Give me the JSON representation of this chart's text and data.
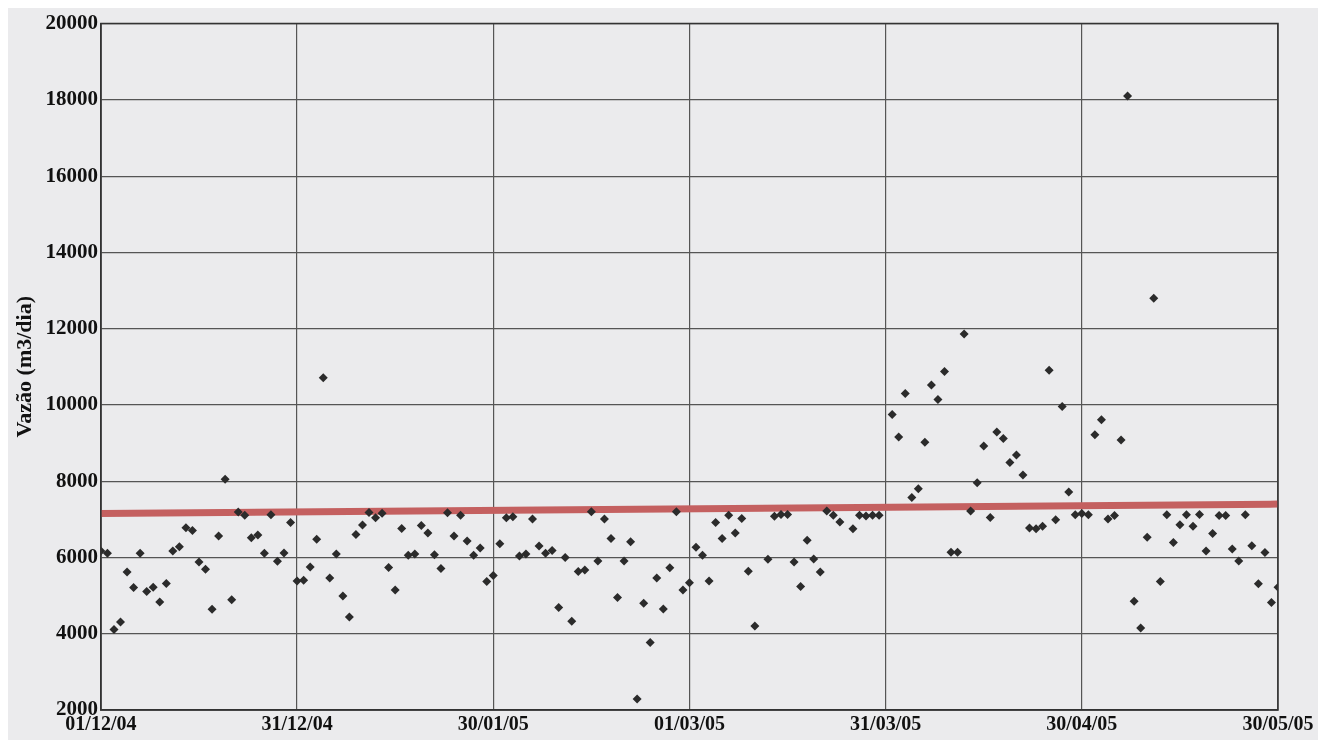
{
  "chart_data": {
    "type": "scatter",
    "ylabel": "Vazão (m3/dia)",
    "xlim": [
      "2004-12-01",
      "2005-05-30"
    ],
    "xticks": [
      {
        "value": "2004-12-01",
        "label": "01/12/04"
      },
      {
        "value": "2004-12-31",
        "label": "31/12/04"
      },
      {
        "value": "2005-01-30",
        "label": "30/01/05"
      },
      {
        "value": "2005-03-01",
        "label": "01/03/05"
      },
      {
        "value": "2005-03-31",
        "label": "31/03/05"
      },
      {
        "value": "2005-04-30",
        "label": "30/04/05"
      },
      {
        "value": "2005-05-30",
        "label": "30/05/05"
      }
    ],
    "ylim": [
      2000,
      20000
    ],
    "yticks": [
      2000,
      4000,
      6000,
      8000,
      10000,
      12000,
      14000,
      16000,
      18000,
      20000
    ],
    "grid": true,
    "legend": false,
    "series": [
      {
        "color": "#2b2b2b",
        "marker": "diamond",
        "x": [
          "2004-12-01",
          "2004-12-02",
          "2004-12-03",
          "2004-12-04",
          "2004-12-05",
          "2004-12-06",
          "2004-12-07",
          "2004-12-08",
          "2004-12-09",
          "2004-12-10",
          "2004-12-11",
          "2004-12-12",
          "2004-12-13",
          "2004-12-14",
          "2004-12-15",
          "2004-12-16",
          "2004-12-17",
          "2004-12-18",
          "2004-12-19",
          "2004-12-20",
          "2004-12-21",
          "2004-12-22",
          "2004-12-23",
          "2004-12-24",
          "2004-12-25",
          "2004-12-26",
          "2004-12-27",
          "2004-12-28",
          "2004-12-29",
          "2004-12-30",
          "2004-12-31",
          "2005-01-01",
          "2005-01-02",
          "2005-01-03",
          "2005-01-04",
          "2005-01-05",
          "2005-01-06",
          "2005-01-07",
          "2005-01-08",
          "2005-01-09",
          "2005-01-10",
          "2005-01-11",
          "2005-01-12",
          "2005-01-13",
          "2005-01-14",
          "2005-01-15",
          "2005-01-16",
          "2005-01-17",
          "2005-01-18",
          "2005-01-19",
          "2005-01-20",
          "2005-01-21",
          "2005-01-22",
          "2005-01-23",
          "2005-01-24",
          "2005-01-25",
          "2005-01-26",
          "2005-01-27",
          "2005-01-28",
          "2005-01-29",
          "2005-01-30",
          "2005-01-31",
          "2005-02-01",
          "2005-02-02",
          "2005-02-03",
          "2005-02-04",
          "2005-02-05",
          "2005-02-06",
          "2005-02-07",
          "2005-02-08",
          "2005-02-09",
          "2005-02-10",
          "2005-02-11",
          "2005-02-12",
          "2005-02-13",
          "2005-02-14",
          "2005-02-15",
          "2005-02-16",
          "2005-02-17",
          "2005-02-18",
          "2005-02-19",
          "2005-02-20",
          "2005-02-21",
          "2005-02-22",
          "2005-02-23",
          "2005-02-24",
          "2005-02-25",
          "2005-02-26",
          "2005-02-27",
          "2005-02-28",
          "2005-03-01",
          "2005-03-02",
          "2005-03-03",
          "2005-03-04",
          "2005-03-05",
          "2005-03-06",
          "2005-03-07",
          "2005-03-08",
          "2005-03-09",
          "2005-03-10",
          "2005-03-11",
          "2005-03-13",
          "2005-03-14",
          "2005-03-15",
          "2005-03-16",
          "2005-03-17",
          "2005-03-18",
          "2005-03-19",
          "2005-03-20",
          "2005-03-21",
          "2005-03-22",
          "2005-03-23",
          "2005-03-24",
          "2005-03-26",
          "2005-03-27",
          "2005-03-28",
          "2005-03-29",
          "2005-03-30",
          "2005-04-01",
          "2005-04-02",
          "2005-04-03",
          "2005-04-04",
          "2005-04-05",
          "2005-04-06",
          "2005-04-07",
          "2005-04-08",
          "2005-04-09",
          "2005-04-10",
          "2005-04-11",
          "2005-04-12",
          "2005-04-13",
          "2005-04-14",
          "2005-04-15",
          "2005-04-16",
          "2005-04-17",
          "2005-04-18",
          "2005-04-19",
          "2005-04-20",
          "2005-04-21",
          "2005-04-22",
          "2005-04-23",
          "2005-04-24",
          "2005-04-25",
          "2005-04-26",
          "2005-04-27",
          "2005-04-28",
          "2005-04-29",
          "2005-04-30",
          "2005-05-01",
          "2005-05-02",
          "2005-05-03",
          "2005-05-04",
          "2005-05-05",
          "2005-05-06",
          "2005-05-07",
          "2005-05-08",
          "2005-05-09",
          "2005-05-10",
          "2005-05-11",
          "2005-05-12",
          "2005-05-13",
          "2005-05-14",
          "2005-05-15",
          "2005-05-16",
          "2005-05-17",
          "2005-05-18",
          "2005-05-19",
          "2005-05-20",
          "2005-05-21",
          "2005-05-22",
          "2005-05-23",
          "2005-05-24",
          "2005-05-25",
          "2005-05-26",
          "2005-05-27",
          "2005-05-28",
          "2005-05-29",
          "2005-05-30"
        ],
        "values": [
          6170,
          6110,
          4110,
          4310,
          5620,
          5210,
          6110,
          5110,
          5220,
          4830,
          5320,
          6170,
          6280,
          6780,
          6710,
          5880,
          5690,
          4640,
          6560,
          8050,
          4890,
          7190,
          7110,
          6520,
          6590,
          6110,
          7120,
          5900,
          6120,
          6920,
          5380,
          5400,
          5750,
          6480,
          10710,
          5460,
          6090,
          4990,
          4440,
          6600,
          6850,
          7180,
          7040,
          7160,
          5740,
          5150,
          6760,
          6060,
          6090,
          6840,
          6640,
          6070,
          5710,
          7170,
          6560,
          7110,
          6430,
          6060,
          6250,
          5370,
          5530,
          6360,
          7040,
          7070,
          6040,
          6090,
          7010,
          6300,
          6110,
          6180,
          4690,
          6000,
          4330,
          5630,
          5670,
          7200,
          5910,
          7010,
          6500,
          4950,
          5910,
          6410,
          2290,
          4800,
          3770,
          5460,
          4650,
          5730,
          7200,
          5150,
          5340,
          6270,
          6060,
          5380,
          6920,
          6500,
          7110,
          6640,
          7020,
          5640,
          4200,
          5950,
          7080,
          7130,
          7130,
          5880,
          5240,
          6450,
          5960,
          5620,
          7220,
          7110,
          6930,
          6750,
          7110,
          7090,
          7110,
          7110,
          9750,
          9160,
          10300,
          7570,
          7800,
          9020,
          10520,
          10140,
          10880,
          6140,
          6140,
          11860,
          7220,
          7960,
          8920,
          7050,
          9290,
          9120,
          8490,
          8690,
          8160,
          6770,
          6750,
          6820,
          10910,
          6990,
          9960,
          7720,
          7120,
          7150,
          7120,
          9220,
          9610,
          7010,
          7100,
          9080,
          18100,
          4850,
          4150,
          6530,
          12800,
          5370,
          7120,
          6390,
          6860,
          7120,
          6820,
          7130,
          6170,
          6630,
          7100,
          7100,
          6220,
          5910,
          7120,
          6310,
          5310,
          6130,
          4820,
          5220
        ]
      },
      {
        "type": "line",
        "color": "#c46060",
        "marker": "none",
        "line_style": "solid",
        "x": [
          "2004-12-01",
          "2005-05-30"
        ],
        "values": [
          7150,
          7400
        ]
      }
    ]
  }
}
